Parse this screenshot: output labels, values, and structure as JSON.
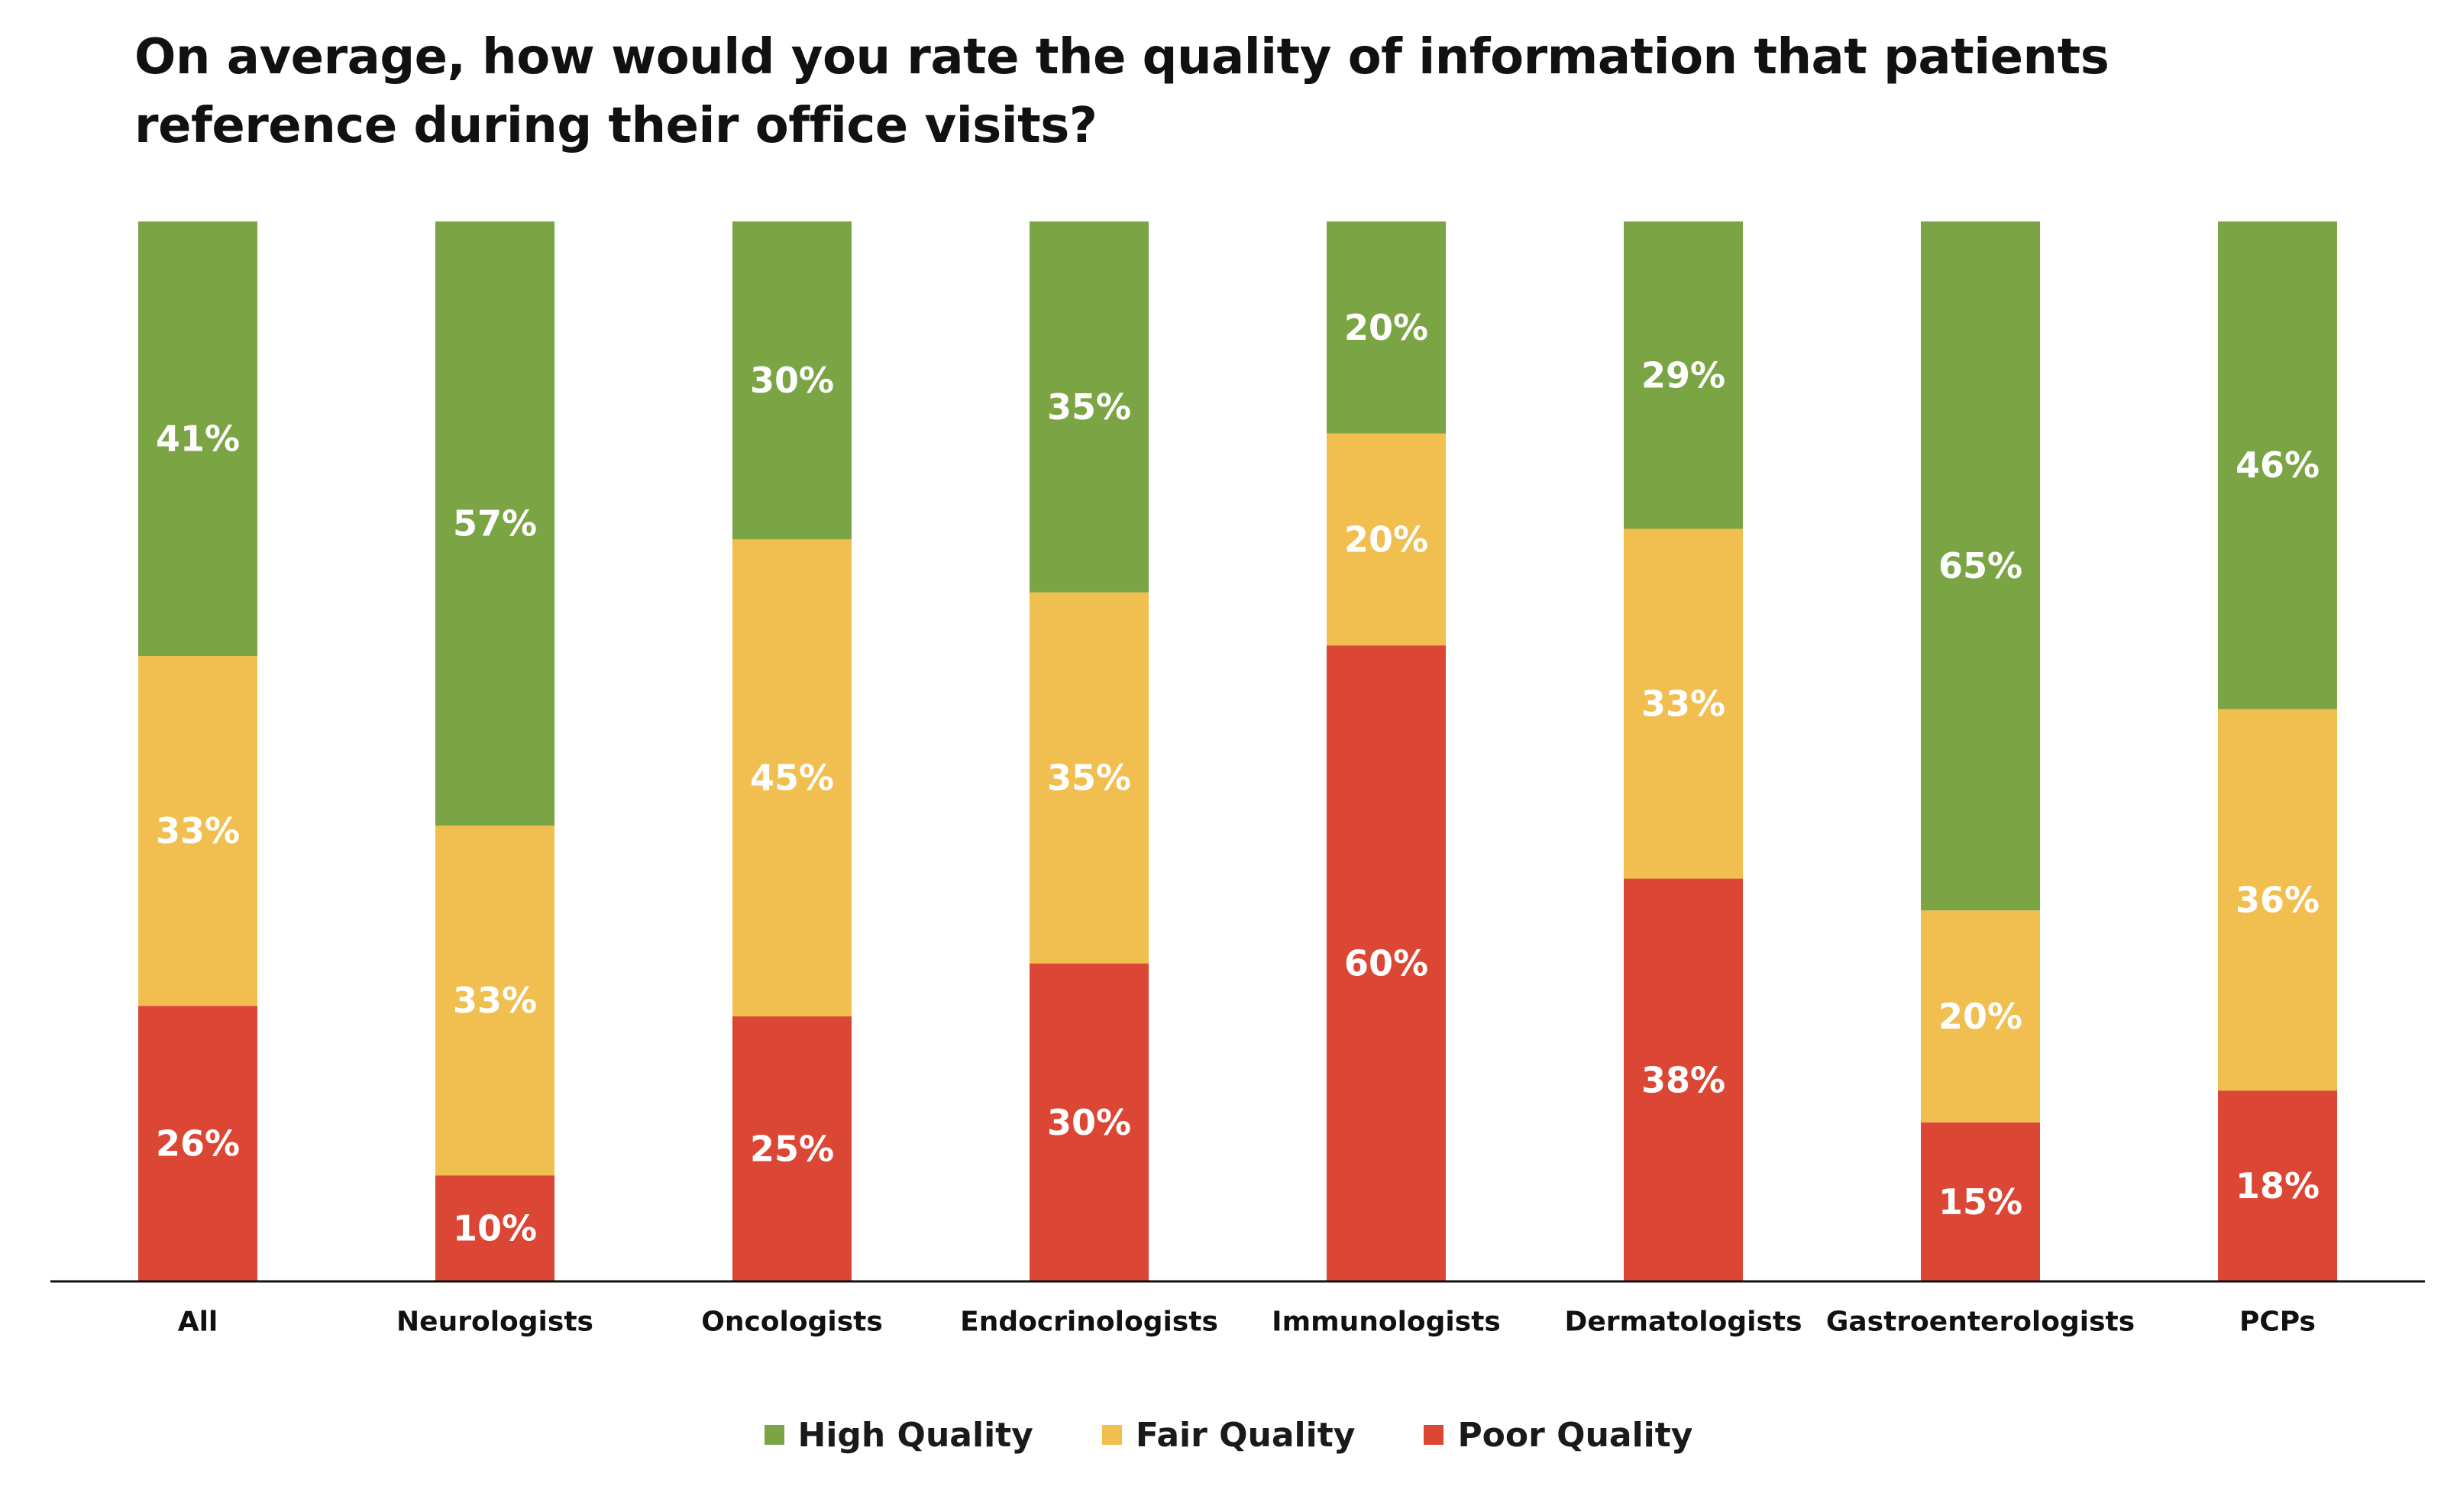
{
  "chart_data": {
    "type": "bar",
    "stacked": true,
    "title": "On average, how would you rate the quality of information that patients reference during their office visits?",
    "categories": [
      "All",
      "Neurologists",
      "Oncologists",
      "Endocrinologists",
      "Immunologists",
      "Dermatologists",
      "Gastroenterologists",
      "PCPs"
    ],
    "series": [
      {
        "name": "Poor Quality",
        "color": "#DC4735",
        "values": [
          26,
          10,
          25,
          30,
          60,
          38,
          15,
          18
        ]
      },
      {
        "name": "Fair Quality",
        "color": "#F1BE50",
        "values": [
          33,
          33,
          45,
          35,
          20,
          33,
          20,
          36
        ]
      },
      {
        "name": "High Quality",
        "color": "#7BA444",
        "values": [
          41,
          57,
          30,
          35,
          20,
          29,
          65,
          46
        ]
      }
    ],
    "value_suffix": "%",
    "ylim": [
      0,
      100
    ],
    "grid": false,
    "legend_position": "bottom",
    "legend_order": [
      "High Quality",
      "Fair Quality",
      "Poor Quality"
    ]
  }
}
